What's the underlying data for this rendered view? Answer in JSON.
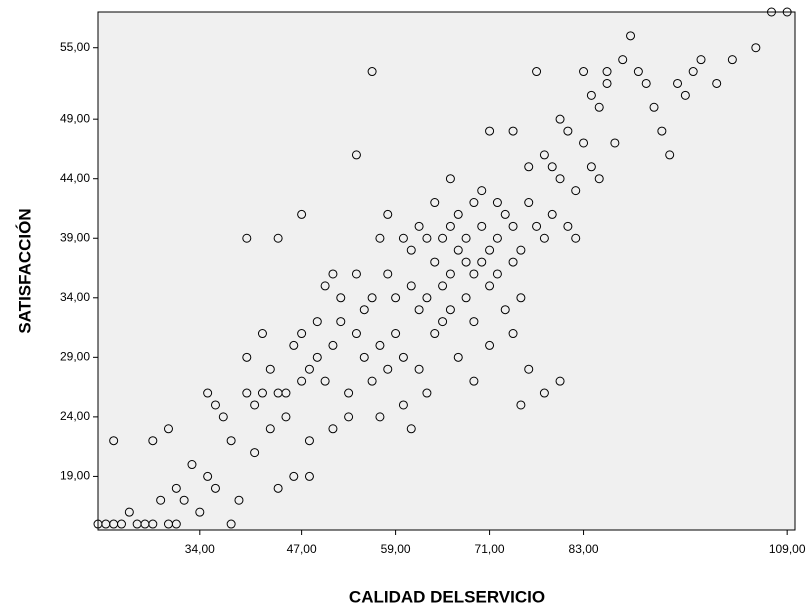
{
  "chart_data": {
    "type": "scatter",
    "x_label": "CALIDAD DELSERVICIO",
    "y_label": "SATISFACCIÓN",
    "xlim": [
      21,
      110
    ],
    "ylim": [
      14.5,
      58
    ],
    "xticks": [
      {
        "value": 34,
        "label": "34,00"
      },
      {
        "value": 47,
        "label": "47,00"
      },
      {
        "value": 59,
        "label": "59,00"
      },
      {
        "value": 71,
        "label": "71,00"
      },
      {
        "value": 83,
        "label": "83,00"
      },
      {
        "value": 109,
        "label": "109,00"
      }
    ],
    "yticks": [
      {
        "value": 19,
        "label": "19,00"
      },
      {
        "value": 24,
        "label": "24,00"
      },
      {
        "value": 29,
        "label": "29,00"
      },
      {
        "value": 34,
        "label": "34,00"
      },
      {
        "value": 39,
        "label": "39,00"
      },
      {
        "value": 44,
        "label": "44,00"
      },
      {
        "value": 49,
        "label": "49,00"
      },
      {
        "value": 55,
        "label": "55,00"
      }
    ],
    "color": "#000000",
    "x": [
      21,
      22,
      23,
      24,
      26,
      27,
      28,
      30,
      23,
      25,
      28,
      29,
      30,
      31,
      31,
      32,
      33,
      34,
      35,
      35,
      36,
      36,
      37,
      38,
      38,
      39,
      40,
      40,
      41,
      41,
      42,
      42,
      43,
      43,
      44,
      44,
      45,
      45,
      46,
      46,
      47,
      47,
      48,
      48,
      48,
      49,
      49,
      50,
      50,
      51,
      51,
      51,
      52,
      52,
      53,
      53,
      54,
      54,
      55,
      55,
      56,
      56,
      57,
      57,
      58,
      58,
      58,
      59,
      59,
      60,
      60,
      60,
      61,
      61,
      62,
      62,
      62,
      63,
      63,
      64,
      64,
      64,
      65,
      65,
      65,
      66,
      66,
      66,
      67,
      67,
      67,
      68,
      68,
      68,
      69,
      69,
      69,
      70,
      70,
      70,
      71,
      71,
      71,
      72,
      72,
      72,
      73,
      73,
      74,
      74,
      74,
      75,
      75,
      76,
      76,
      77,
      77,
      78,
      78,
      79,
      79,
      80,
      80,
      81,
      81,
      82,
      82,
      83,
      83,
      84,
      84,
      85,
      85,
      86,
      86,
      87,
      88,
      89,
      90,
      91,
      92,
      93,
      94,
      95,
      96,
      97,
      98,
      100,
      102,
      105,
      107,
      109,
      40,
      44,
      47,
      54,
      56,
      61,
      66,
      69,
      71,
      74,
      78,
      80,
      57,
      63,
      75,
      76
    ],
    "values": [
      15,
      15,
      15,
      15,
      15,
      15,
      15,
      15,
      22,
      16,
      22,
      17,
      23,
      18,
      15,
      17,
      20,
      16,
      19,
      26,
      18,
      25,
      24,
      22,
      15,
      17,
      26,
      29,
      21,
      25,
      26,
      31,
      23,
      28,
      26,
      18,
      26,
      24,
      19,
      30,
      27,
      31,
      28,
      22,
      19,
      32,
      29,
      35,
      27,
      30,
      36,
      23,
      32,
      34,
      26,
      24,
      31,
      36,
      29,
      33,
      27,
      34,
      30,
      39,
      36,
      28,
      41,
      34,
      31,
      39,
      25,
      29,
      35,
      38,
      33,
      40,
      28,
      34,
      39,
      31,
      37,
      42,
      35,
      39,
      32,
      36,
      40,
      33,
      38,
      29,
      41,
      37,
      34,
      39,
      36,
      42,
      32,
      40,
      37,
      43,
      38,
      35,
      48,
      39,
      36,
      42,
      33,
      41,
      40,
      37,
      48,
      38,
      34,
      42,
      45,
      40,
      53,
      39,
      46,
      41,
      45,
      44,
      49,
      48,
      40,
      43,
      39,
      53,
      47,
      45,
      51,
      50,
      44,
      53,
      52,
      47,
      54,
      56,
      53,
      52,
      50,
      48,
      46,
      52,
      51,
      53,
      54,
      52,
      54,
      55,
      58,
      58,
      39,
      39,
      41,
      46,
      53,
      23,
      44,
      27,
      30,
      31,
      26,
      27,
      24,
      26,
      25,
      28
    ]
  }
}
